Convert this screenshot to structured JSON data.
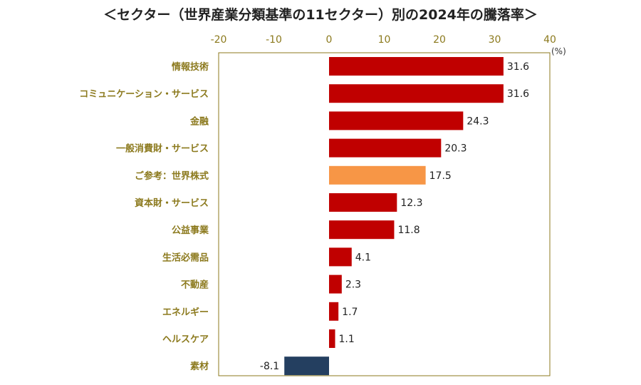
{
  "chart_data": {
    "type": "bar",
    "orientation": "horizontal",
    "title": "＜セクター（世界産業分類基準の11セクター）別の2024年の騰落率＞",
    "unit": "(%)",
    "xlim": [
      -20,
      40
    ],
    "ticks": [
      "-20",
      "-10",
      "0",
      "10",
      "20",
      "30",
      "40"
    ],
    "categories": [
      "情報技術",
      "コミュニケーション・サービス",
      "金融",
      "一般消費財・サービス",
      "ご参考：世界株式",
      "資本財・サービス",
      "公益事業",
      "生活必需品",
      "不動産",
      "エネルギー",
      "ヘルスケア",
      "素材"
    ],
    "values": [
      31.6,
      31.6,
      24.3,
      20.3,
      17.5,
      12.3,
      11.8,
      4.1,
      2.3,
      1.7,
      1.1,
      -8.1
    ],
    "value_labels": [
      "31.6",
      "31.6",
      "24.3",
      "20.3",
      "17.5",
      "12.3",
      "11.8",
      "4.1",
      "2.3",
      "1.7",
      "1.1",
      "-8.1"
    ],
    "bar_colors": [
      "#C00000",
      "#C00000",
      "#C00000",
      "#C00000",
      "#F79646",
      "#C00000",
      "#C00000",
      "#C00000",
      "#C00000",
      "#C00000",
      "#C00000",
      "#243F60"
    ],
    "colors": {
      "positive": "#C00000",
      "reference": "#F79646",
      "negative": "#243F60",
      "axis_text": "#8C7A1E",
      "frame": "#8C7A1E"
    },
    "grid": false,
    "legend": "none"
  }
}
